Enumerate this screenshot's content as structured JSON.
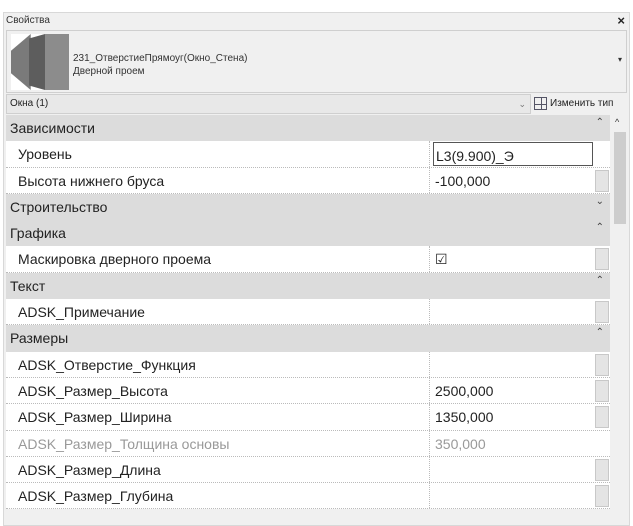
{
  "panel": {
    "title": "Свойства",
    "close": "×"
  },
  "type_selector": {
    "family": "231_ОтверстиеПрямоуг(Окно_Стена)",
    "type": "Дверной проем",
    "dropdown": "▾"
  },
  "filter": {
    "value": "Окна (1)",
    "chevron": "⌄",
    "edit_type": "Изменить тип"
  },
  "groups": [
    {
      "name": "Зависимости",
      "toggle": "⌃",
      "props": [
        {
          "label": "Уровень",
          "value": "L3(9.900)_Э",
          "editing": true
        },
        {
          "label": "Высота нижнего бруса",
          "value": "-100,000",
          "button": true
        }
      ]
    },
    {
      "name": "Строительство",
      "toggle": "⌄",
      "props": []
    },
    {
      "name": "Графика",
      "toggle": "⌃",
      "props": [
        {
          "label": "Маскировка дверного проема",
          "value": "☑",
          "button": true
        }
      ]
    },
    {
      "name": "Текст",
      "toggle": "⌃",
      "props": [
        {
          "label": "ADSK_Примечание",
          "value": "",
          "button": true
        }
      ]
    },
    {
      "name": "Размеры",
      "toggle": "⌃",
      "props": [
        {
          "label": "ADSK_Отверстие_Функция",
          "value": "",
          "button": true
        },
        {
          "label": "ADSK_Размер_Высота",
          "value": "2500,000",
          "button": true
        },
        {
          "label": "ADSK_Размер_Ширина",
          "value": "1350,000",
          "button": true
        },
        {
          "label": "ADSK_Размер_Толщина основы",
          "value": "350,000",
          "readonly": true
        },
        {
          "label": "ADSK_Размер_Длина",
          "value": "",
          "button": true
        },
        {
          "label": "ADSK_Размер_Глубина",
          "value": "",
          "button": true
        }
      ]
    }
  ]
}
